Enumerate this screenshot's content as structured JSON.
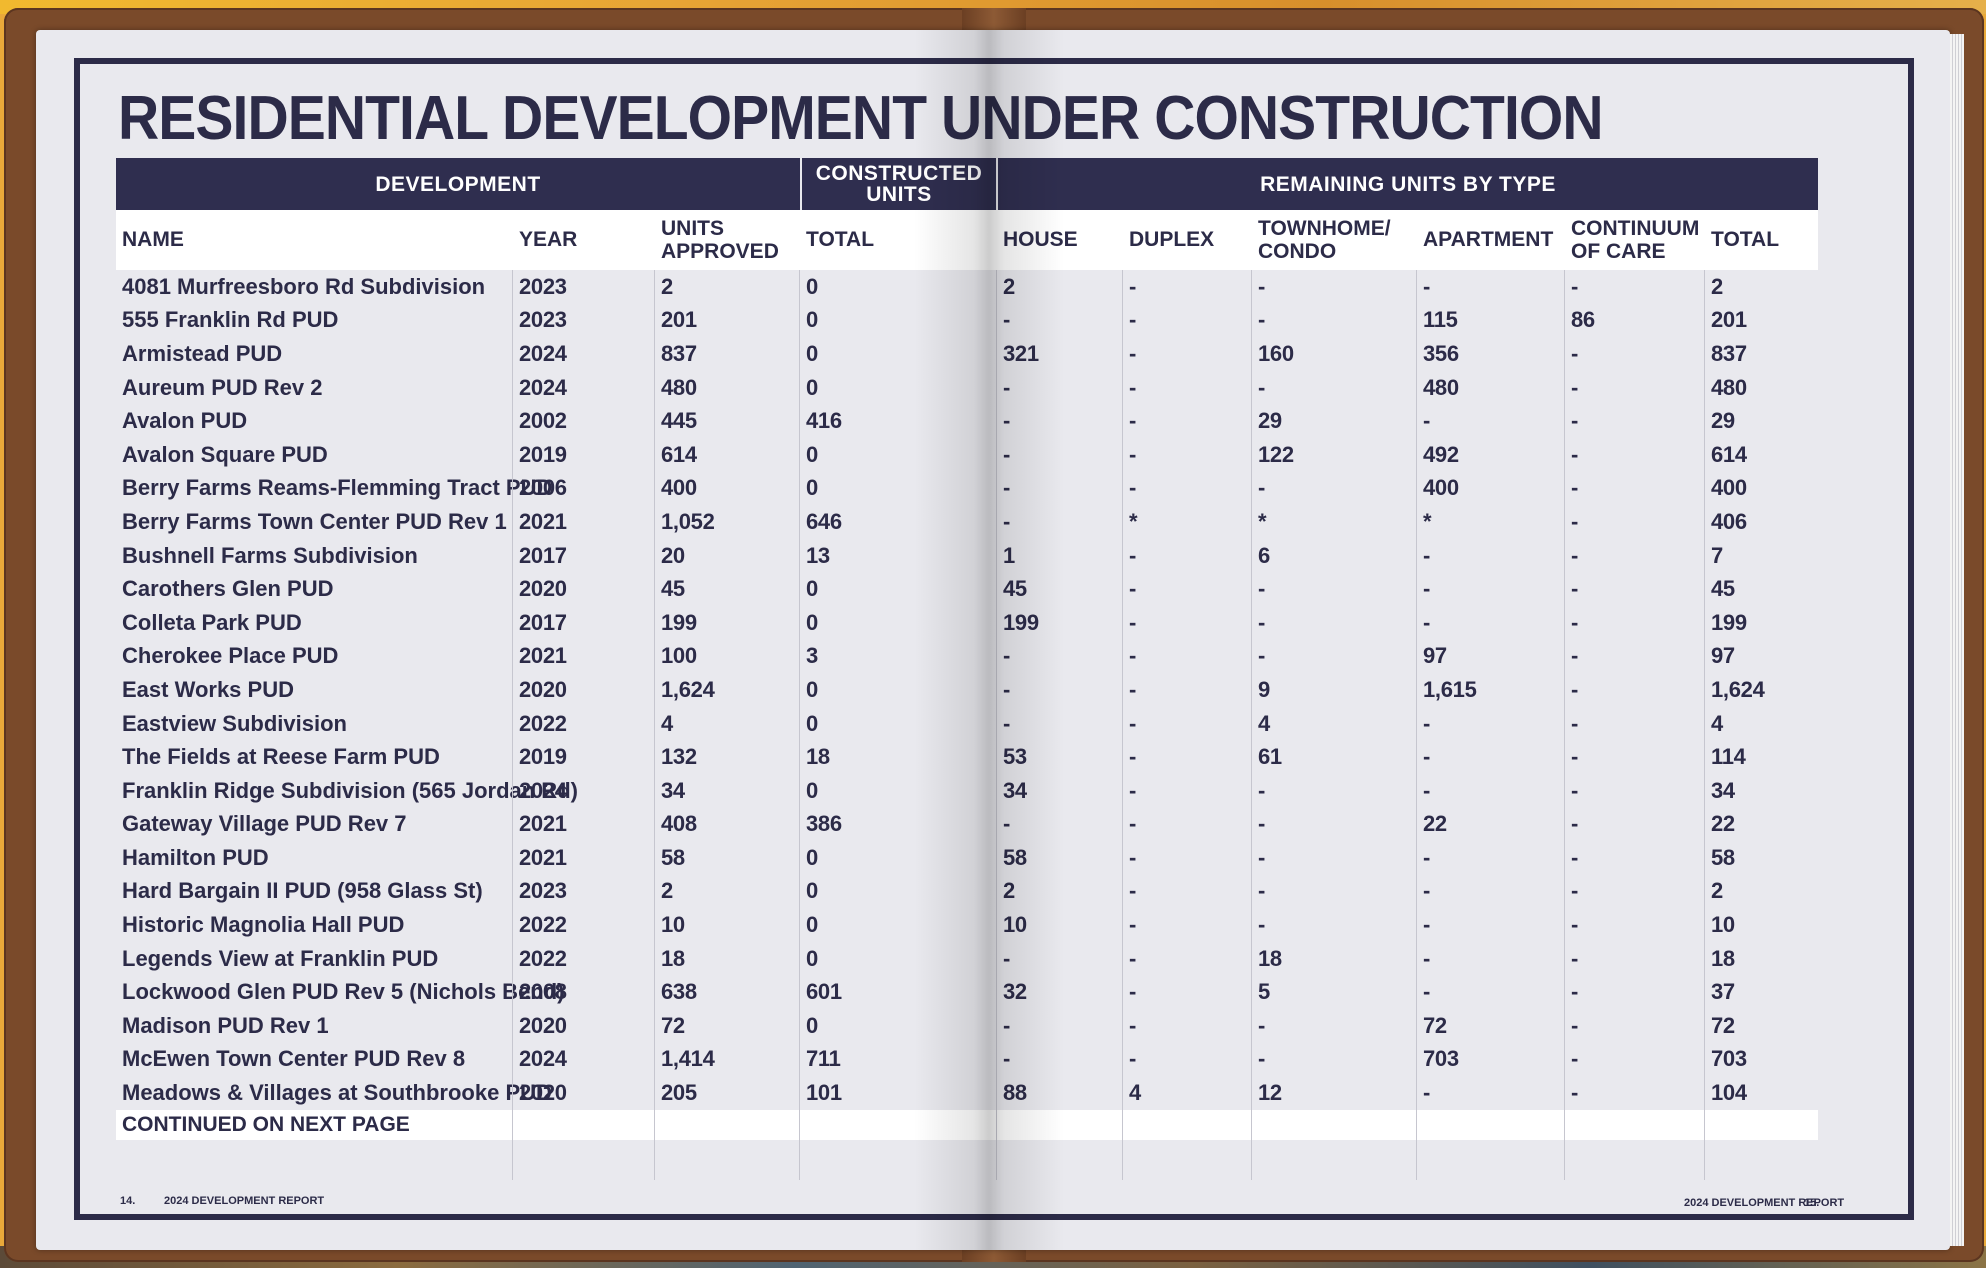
{
  "title": "RESIDENTIAL DEVELOPMENT UNDER CONSTRUCTION",
  "group_headers": {
    "development": "DEVELOPMENT",
    "constructed_line1": "CONSTRUCTED",
    "constructed_line2": "UNITS",
    "remaining": "REMAINING UNITS BY TYPE"
  },
  "columns": {
    "name": "NAME",
    "year": "YEAR",
    "units_line1": "UNITS",
    "units_line2": "APPROVED",
    "total_built": "TOTAL",
    "house": "HOUSE",
    "duplex": "DUPLEX",
    "townhome_line1": "TOWNHOME/",
    "townhome_line2": "CONDO",
    "apartment": "APARTMENT",
    "care_line1": "CONTINUUM",
    "care_line2": "OF CARE",
    "total_remaining": "TOTAL"
  },
  "rows": [
    [
      "4081 Murfreesboro Rd Subdivision",
      "2023",
      "2",
      "0",
      "2",
      "-",
      "-",
      "-",
      "-",
      "2"
    ],
    [
      "555 Franklin Rd PUD",
      "2023",
      "201",
      "0",
      "-",
      "-",
      "-",
      "115",
      "86",
      "201"
    ],
    [
      "Armistead PUD",
      "2024",
      "837",
      "0",
      "321",
      "-",
      "160",
      "356",
      "-",
      "837"
    ],
    [
      "Aureum PUD Rev 2",
      "2024",
      "480",
      "0",
      "-",
      "-",
      "-",
      "480",
      "-",
      "480"
    ],
    [
      "Avalon PUD",
      "2002",
      "445",
      "416",
      "-",
      "-",
      "29",
      "-",
      "-",
      "29"
    ],
    [
      "Avalon Square PUD",
      "2019",
      "614",
      "0",
      "-",
      "-",
      "122",
      "492",
      "-",
      "614"
    ],
    [
      "Berry Farms Reams-Flemming Tract PUD",
      "2006",
      "400",
      "0",
      "-",
      "-",
      "-",
      "400",
      "-",
      "400"
    ],
    [
      "Berry Farms Town Center PUD Rev 1",
      "2021",
      "1,052",
      "646",
      "-",
      "*",
      "*",
      "*",
      "-",
      "406"
    ],
    [
      "Bushnell Farms Subdivision",
      "2017",
      "20",
      "13",
      "1",
      "-",
      "6",
      "-",
      "-",
      "7"
    ],
    [
      "Carothers Glen PUD",
      "2020",
      "45",
      "0",
      "45",
      "-",
      "-",
      "-",
      "-",
      "45"
    ],
    [
      "Colleta Park PUD",
      "2017",
      "199",
      "0",
      "199",
      "-",
      "-",
      "-",
      "-",
      "199"
    ],
    [
      "Cherokee Place PUD",
      "2021",
      "100",
      "3",
      "-",
      "-",
      "-",
      "97",
      "-",
      "97"
    ],
    [
      "East Works PUD",
      "2020",
      "1,624",
      "0",
      "-",
      "-",
      "9",
      "1,615",
      "-",
      "1,624"
    ],
    [
      "Eastview Subdivision",
      "2022",
      "4",
      "0",
      "-",
      "-",
      "4",
      "-",
      "-",
      "4"
    ],
    [
      "The Fields at Reese Farm PUD",
      "2019",
      "132",
      "18",
      "53",
      "-",
      "61",
      "-",
      "-",
      "114"
    ],
    [
      "Franklin Ridge Subdivision (565 Jordan Rd)",
      "2024",
      "34",
      "0",
      "34",
      "-",
      "-",
      "-",
      "-",
      "34"
    ],
    [
      "Gateway Village PUD Rev 7",
      "2021",
      "408",
      "386",
      "-",
      "-",
      "-",
      "22",
      "-",
      "22"
    ],
    [
      "Hamilton PUD",
      "2021",
      "58",
      "0",
      "58",
      "-",
      "-",
      "-",
      "-",
      "58"
    ],
    [
      "Hard Bargain II PUD (958 Glass St)",
      "2023",
      "2",
      "0",
      "2",
      "-",
      "-",
      "-",
      "-",
      "2"
    ],
    [
      "Historic Magnolia Hall PUD",
      "2022",
      "10",
      "0",
      "10",
      "-",
      "-",
      "-",
      "-",
      "10"
    ],
    [
      "Legends View at Franklin PUD",
      "2022",
      "18",
      "0",
      "-",
      "-",
      "18",
      "-",
      "-",
      "18"
    ],
    [
      "Lockwood Glen PUD Rev 5 (Nichols Bend)",
      "2008",
      "638",
      "601",
      "32",
      "-",
      "5",
      "-",
      "-",
      "37"
    ],
    [
      "Madison PUD Rev 1",
      "2020",
      "72",
      "0",
      "-",
      "-",
      "-",
      "72",
      "-",
      "72"
    ],
    [
      "McEwen Town Center PUD Rev 8",
      "2024",
      "1,414",
      "711",
      "-",
      "-",
      "-",
      "703",
      "-",
      "703"
    ],
    [
      "Meadows & Villages at Southbrooke PUD",
      "2020",
      "205",
      "101",
      "88",
      "4",
      "12",
      "-",
      "-",
      "104"
    ]
  ],
  "continued": "CONTINUED ON NEXT PAGE",
  "footer": {
    "left_page_number": "14.",
    "left_report": "2024 DEVELOPMENT REPORT",
    "right_report": "2024 DEVELOPMENT REPORT",
    "right_page_number": "15."
  }
}
